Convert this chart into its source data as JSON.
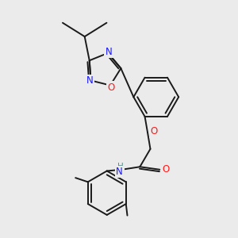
{
  "bg_color": "#ebebeb",
  "bond_color": "#1a1a1a",
  "bond_width": 1.4,
  "atom_colors": {
    "N": "#1919ff",
    "O": "#ff1919",
    "H": "#5a9090"
  },
  "font_size": 8.5
}
